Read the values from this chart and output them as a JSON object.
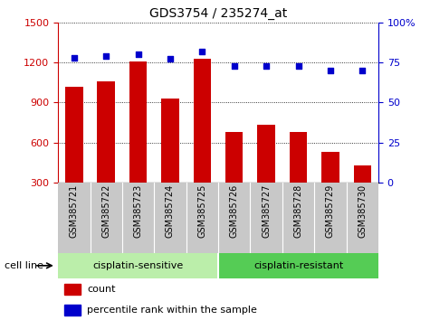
{
  "title": "GDS3754 / 235274_at",
  "samples": [
    "GSM385721",
    "GSM385722",
    "GSM385723",
    "GSM385724",
    "GSM385725",
    "GSM385726",
    "GSM385727",
    "GSM385728",
    "GSM385729",
    "GSM385730"
  ],
  "counts": [
    1020,
    1060,
    1210,
    930,
    1230,
    680,
    730,
    675,
    530,
    430
  ],
  "percentiles": [
    78,
    79,
    80,
    77,
    82,
    73,
    73,
    73,
    70,
    70
  ],
  "bar_color": "#cc0000",
  "dot_color": "#0000cc",
  "left_ylim": [
    300,
    1500
  ],
  "left_yticks": [
    300,
    600,
    900,
    1200,
    1500
  ],
  "right_ylim": [
    0,
    100
  ],
  "right_yticks": [
    0,
    25,
    50,
    75,
    100
  ],
  "cell_line_label": "cell line",
  "sensitive_color": "#bbeeaa",
  "resistant_color": "#55cc55",
  "tick_bg_color": "#c8c8c8",
  "legend_count_label": "count",
  "legend_pct_label": "percentile rank within the sample",
  "sensitive_label": "cisplatin-sensitive",
  "resistant_label": "cisplatin-resistant",
  "n_sensitive": 5,
  "n_resistant": 5
}
